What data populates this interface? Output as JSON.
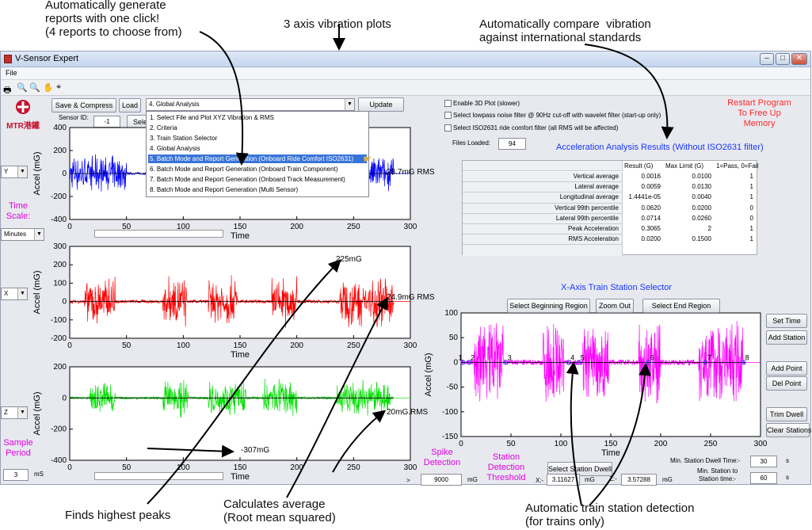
{
  "annotations": {
    "generate": "Automatically generate\nreports with one click!\n(4 reports to choose from)",
    "vibration": "3 axis vibration plots",
    "compare": "Automatically compare  vibration\nagainst international standards",
    "peaks": "Finds highest peaks",
    "average": "Calculates average\n(Root mean squared)",
    "station": "Automatic train station detection\n(for trains only)"
  },
  "window": {
    "title": "V-Sensor Expert",
    "menu_file": "File",
    "min": "–",
    "max": "□",
    "close": "✕"
  },
  "logo": {
    "text": "MTR港鐵"
  },
  "controls": {
    "save_compress": "Save & Compress",
    "load": "Load",
    "analysis_selected": "4. Global Analysis",
    "update": "Update",
    "sensor_id_label": "Sensor ID:",
    "sensor_id_value": "-1",
    "select_partial": "Sele",
    "enable_3d": "Enable 3D Plot (slower)",
    "lowpass": "Select lowpass noise filter @ 90Hz cut-off with wavelet filter (start-up only)",
    "iso2631": "Select ISO2631 ride comfort filter (all RMS will be affected)",
    "files_loaded_label": "Files Loaded:",
    "files_loaded_value": "94",
    "restart": "Restart Program\nTo Free Up\nMemory"
  },
  "dropdown_items": [
    "1. Select File and Plot XYZ Vibration & RMS",
    "2. Criteria",
    "3. Train Station Selector",
    "4. Global Analysis",
    "5. Batch Mode and Report Generation (Onboard Ride Comfort ISO2631)",
    "6. Batch Mode and Report Generation (Onboard Train Component)",
    "7. Batch Mode and Report Generation (Onboard Track Measurement)",
    "8. Batch Mode and Report Generation (Multi Sensor)"
  ],
  "left_panel": {
    "axis_y": "Y",
    "axis_x": "X",
    "axis_z": "Z",
    "time_scale": "Time\nScale:",
    "time_unit": "Minutes",
    "sample_period": "Sample\nPeriod",
    "sample_value": "3",
    "sample_unit": "mS"
  },
  "results": {
    "title": "Acceleration Analysis Results (Without ISO2631 filter)",
    "headers": [
      "Result (G)",
      "Max Limit (G)",
      "1=Pass, 0=Fail"
    ],
    "rows": [
      {
        "label": "Vertical average",
        "result": "0.0016",
        "limit": "0.0100",
        "pass": "1"
      },
      {
        "label": "Lateral average",
        "result": "0.0059",
        "limit": "0.0130",
        "pass": "1"
      },
      {
        "label": "Longitudinal average",
        "result": "1.4441e-05",
        "limit": "0.0040",
        "pass": "1"
      },
      {
        "label": "Vertical 99th percentile",
        "result": "0.0620",
        "limit": "0.0200",
        "pass": "0"
      },
      {
        "label": "Lateral 99th percentile",
        "result": "0.0714",
        "limit": "0.0260",
        "pass": "0"
      },
      {
        "label": "Peak Acceleration",
        "result": "0.3065",
        "limit": "2",
        "pass": "1"
      },
      {
        "label": "RMS Acceleration",
        "result": "0.0200",
        "limit": "0.1500",
        "pass": "1"
      }
    ]
  },
  "station_selector": {
    "title": "X-Axis Train Station Selector",
    "select_begin": "Select Beginning Region",
    "zoom_out": "Zoom Out",
    "select_end": "Select End Region",
    "set_time": "Set Time",
    "add_station": "Add Station",
    "add_point": "Add Point",
    "del_point": "Del Point",
    "trim_dwell": "Trim Dwell",
    "clear_stations": "Clear Stations",
    "select_dwell": "Select Station Dwell",
    "min_dwell_label": "Min. Station Dwell Time:-",
    "min_dwell_value": "30",
    "min_dwell_unit": "s",
    "min_station_label": "Min. Station to\nStation time:-",
    "min_station_value": "60",
    "min_station_unit": "s",
    "station_markers": [
      "1",
      "2",
      "3",
      "4",
      "5",
      "6",
      "7",
      "8"
    ]
  },
  "bottom": {
    "spike_label": "Spike\nDetection",
    "spike_value": "9000",
    "spike_unit": "mG",
    "station_threshold": "Station\nDetection\nThreshold",
    "x_label": "X:-",
    "x_value": "3.11627",
    "x_unit": "mG",
    "z_label": "Z:-",
    "z_value": "3.57288",
    "z_unit": "mG",
    "gt": ">"
  },
  "plot_labels": {
    "ylabel": "Accel (mG)",
    "xlabel": "Time",
    "rms_y": "28.7mG RMS",
    "rms_x": "24.9mG RMS",
    "rms_z": "20mG.RMS",
    "peak_x": "225mG",
    "peak_z": "-307mG"
  },
  "chart_data": [
    {
      "type": "line",
      "axis": "Y",
      "color": "#0000ff",
      "xlim": [
        0,
        300
      ],
      "ylim": [
        -400,
        400
      ],
      "xticks": [
        0,
        50,
        100,
        150,
        200,
        250,
        300
      ],
      "yticks": [
        -400,
        -200,
        0,
        200,
        400
      ],
      "bursts": [
        [
          0,
          50
        ],
        [
          85,
          105
        ],
        [
          125,
          160
        ],
        [
          170,
          205
        ],
        [
          240,
          275
        ],
        [
          275,
          285
        ]
      ],
      "amplitude": 170,
      "rms": 28.7
    },
    {
      "type": "line",
      "axis": "X",
      "color": "#ff0000",
      "xlim": [
        0,
        300
      ],
      "ylim": [
        -200,
        300
      ],
      "xticks": [
        0,
        50,
        100,
        150,
        200,
        250,
        300
      ],
      "yticks": [
        -200,
        -100,
        0,
        100,
        200,
        300
      ],
      "bursts": [
        [
          13,
          40
        ],
        [
          82,
          103
        ],
        [
          122,
          148
        ],
        [
          178,
          200
        ],
        [
          238,
          262
        ],
        [
          263,
          285
        ]
      ],
      "amplitude": 150,
      "peak": 225,
      "rms": 24.9
    },
    {
      "type": "line",
      "axis": "Z",
      "color": "#00e000",
      "xlim": [
        0,
        300
      ],
      "ylim": [
        -400,
        200
      ],
      "xticks": [
        0,
        50,
        100,
        150,
        200,
        250,
        300
      ],
      "yticks": [
        -400,
        -200,
        0,
        200
      ],
      "bursts": [
        [
          18,
          40
        ],
        [
          82,
          105
        ],
        [
          122,
          155
        ],
        [
          170,
          200
        ],
        [
          235,
          262
        ],
        [
          262,
          282
        ]
      ],
      "amplitude": 130,
      "peak": -307,
      "rms": 20
    },
    {
      "type": "line",
      "axis": "X (station selector)",
      "color": "#ff00ff",
      "xlim": [
        0,
        300
      ],
      "ylim": [
        -150,
        100
      ],
      "xticks": [
        0,
        50,
        100,
        150,
        200,
        250,
        300
      ],
      "yticks": [
        -150,
        -100,
        -50,
        0,
        50,
        100
      ],
      "bursts": [
        [
          13,
          42
        ],
        [
          82,
          103
        ],
        [
          122,
          148
        ],
        [
          178,
          200
        ],
        [
          238,
          262
        ],
        [
          263,
          282
        ]
      ],
      "amplitude": 95,
      "stations": [
        2,
        8,
        45,
        108,
        118,
        188,
        245,
        283
      ]
    }
  ]
}
